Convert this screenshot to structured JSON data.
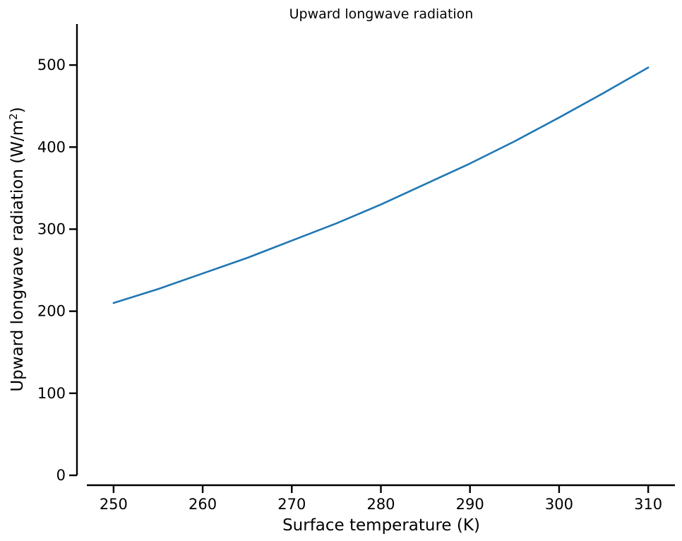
{
  "chart_data": {
    "type": "line",
    "title": "Upward longwave radiation",
    "xlabel": "Surface temperature (K)",
    "ylabel": "Upward longwave radiation (W/m",
    "ylabel_sup": "2",
    "ylabel_suffix": ")",
    "xlim": [
      247,
      313
    ],
    "ylim": [
      0,
      550
    ],
    "x_ticks": [
      250,
      260,
      270,
      280,
      290,
      300,
      310
    ],
    "y_ticks": [
      0,
      100,
      200,
      300,
      400,
      500
    ],
    "grid": false,
    "series_color": "#1f77b4",
    "series": [
      {
        "x": [
          250,
          255,
          260,
          265,
          270,
          275,
          280,
          285,
          290,
          295,
          300,
          305,
          310
        ],
        "values": [
          210,
          227,
          246,
          265,
          286,
          307,
          330,
          355,
          380,
          407,
          436,
          466,
          497
        ]
      }
    ]
  }
}
